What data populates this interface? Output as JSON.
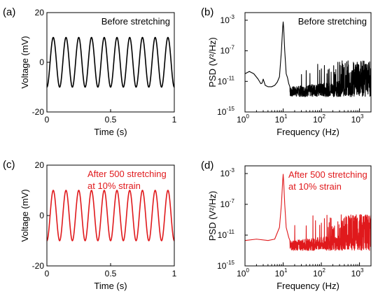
{
  "chart_data": [
    {
      "panel": "(a)",
      "type": "line",
      "annotation": [
        "Before stretching"
      ],
      "xlabel": "Time (s)",
      "ylabel": "Voltage (mV)",
      "xlim": [
        0,
        1
      ],
      "ylim": [
        -20,
        20
      ],
      "xticks": [
        "0",
        "0.5",
        "1"
      ],
      "yticks": [
        "20",
        "0",
        "-20"
      ],
      "series": [
        {
          "color": "#000000",
          "kind": "sine",
          "frequency_hz": 10,
          "amplitude_mV": 10,
          "offset_mV": 0
        }
      ]
    },
    {
      "panel": "(b)",
      "type": "line",
      "annotation": [
        "Before stretching"
      ],
      "xlabel": "Frequency (Hz)",
      "ylabel": "PSD (V²/Hz)",
      "xscale": "log",
      "yscale": "log",
      "xlim": [
        1,
        2000
      ],
      "ylim": [
        1e-15,
        0.01
      ],
      "series": [
        {
          "color": "#000000",
          "points": [
            [
              1,
              1e-10
            ],
            [
              1.3,
              2e-10
            ],
            [
              1.7,
              1e-10
            ],
            [
              2.2,
              2e-11
            ],
            [
              2.6,
              5e-12
            ],
            [
              2.8,
              6e-12
            ],
            [
              3,
              2e-11
            ],
            [
              3.4,
              3e-12
            ],
            [
              4,
              2e-12
            ],
            [
              5,
              2e-12
            ],
            [
              6,
              3e-12
            ],
            [
              7,
              8e-12
            ],
            [
              8,
              4e-11
            ],
            [
              9,
              1e-07
            ],
            [
              9.7,
              0.0001
            ],
            [
              10,
              0.0006
            ],
            [
              10.3,
              0.0001
            ],
            [
              11,
              1e-07
            ],
            [
              12,
              1e-10
            ],
            [
              13,
              3e-11
            ],
            [
              14,
              5e-12
            ],
            [
              15,
              2e-12
            ]
          ],
          "noise_band": {
            "from_hz": 15,
            "to_hz": 2000,
            "low": 1e-13,
            "high": 3e-11,
            "harmonic_peak_step_hz": 10,
            "harmonic_peak_height": 5e-09
          }
        }
      ]
    },
    {
      "panel": "(c)",
      "type": "line",
      "annotation": [
        "After 500 stretching",
        "at 10% strain"
      ],
      "xlabel": "Time (s)",
      "ylabel": "Voltage (mV)",
      "xlim": [
        0,
        1
      ],
      "ylim": [
        -20,
        20
      ],
      "xticks": [
        "0",
        "0.5",
        "1"
      ],
      "yticks": [
        "20",
        "0",
        "-20"
      ],
      "series": [
        {
          "color": "#e0191c",
          "kind": "sine",
          "frequency_hz": 10,
          "amplitude_mV": 10,
          "offset_mV": 0
        }
      ]
    },
    {
      "panel": "(d)",
      "type": "line",
      "annotation": [
        "After 500 stretching",
        "at 10% strain"
      ],
      "xlabel": "Frequency (Hz)",
      "ylabel": "PSD (V²/Hz)",
      "xscale": "log",
      "yscale": "log",
      "xlim": [
        1,
        2000
      ],
      "ylim": [
        1e-15,
        0.01
      ],
      "series": [
        {
          "color": "#e0191c",
          "points": [
            [
              1,
              2e-12
            ],
            [
              2,
              3e-12
            ],
            [
              4,
              2e-12
            ],
            [
              6,
              3e-12
            ],
            [
              8,
              1e-10
            ],
            [
              9,
              1e-07
            ],
            [
              9.7,
              0.0001
            ],
            [
              10,
              0.0008
            ],
            [
              10.3,
              0.0001
            ],
            [
              11,
              1e-07
            ],
            [
              12,
              1e-10
            ],
            [
              14,
              5e-12
            ],
            [
              15,
              2e-12
            ]
          ],
          "noise_band": {
            "from_hz": 15,
            "to_hz": 2000,
            "low": 1e-13,
            "high": 3e-11,
            "harmonic_peak_step_hz": 10,
            "harmonic_peak_height": 5e-09
          }
        }
      ]
    }
  ]
}
